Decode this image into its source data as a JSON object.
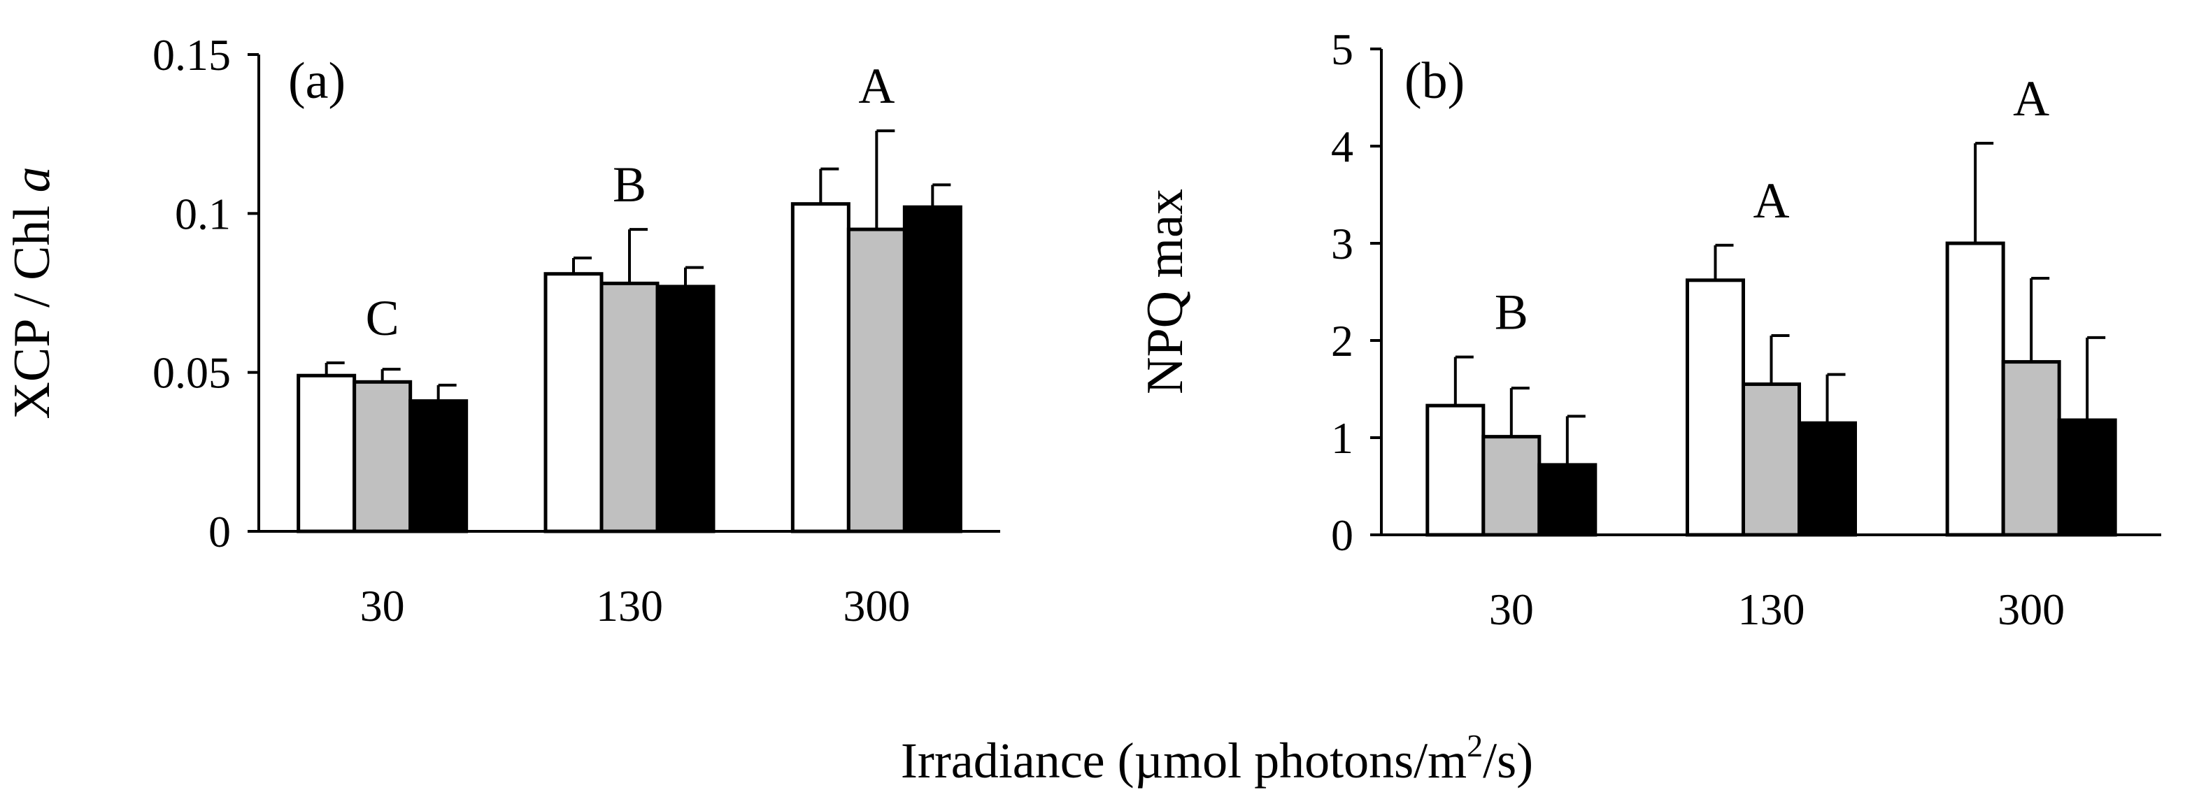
{
  "figure": {
    "shared_xlabel_main": "Irradiance (µmol photons/m",
    "shared_xlabel_sup": "2",
    "shared_xlabel_end": "/s)"
  },
  "chart_data": [
    {
      "type": "bar",
      "panel_label": "(a)",
      "ylabel_main": "XCP / Chl ",
      "ylabel_italic": "a",
      "categories": [
        "30",
        "130",
        "300"
      ],
      "yticks": [
        "0",
        "0.05",
        "0.1",
        "0.15"
      ],
      "ylim": [
        0,
        0.15
      ],
      "series": [
        {
          "name": "white",
          "color": "#ffffff",
          "values": [
            0.049,
            0.081,
            0.103
          ],
          "errors": [
            0.004,
            0.005,
            0.011
          ]
        },
        {
          "name": "gray",
          "color": "#c0c0c0",
          "values": [
            0.047,
            0.078,
            0.095
          ],
          "errors": [
            0.004,
            0.017,
            0.031
          ]
        },
        {
          "name": "black",
          "color": "#000000",
          "values": [
            0.041,
            0.077,
            0.102
          ],
          "errors": [
            0.005,
            0.006,
            0.007
          ]
        }
      ],
      "significance": [
        "C",
        "B",
        "A"
      ]
    },
    {
      "type": "bar",
      "panel_label": "(b)",
      "ylabel_main": "NPQ max",
      "ylabel_italic": "",
      "categories": [
        "30",
        "130",
        "300"
      ],
      "yticks": [
        "0",
        "1",
        "2",
        "3",
        "4",
        "5"
      ],
      "ylim": [
        0,
        5
      ],
      "series": [
        {
          "name": "white",
          "color": "#ffffff",
          "values": [
            1.33,
            2.62,
            3.0
          ],
          "errors": [
            0.5,
            0.36,
            1.03
          ]
        },
        {
          "name": "gray",
          "color": "#c0c0c0",
          "values": [
            1.01,
            1.55,
            1.78
          ],
          "errors": [
            0.5,
            0.5,
            0.86
          ]
        },
        {
          "name": "black",
          "color": "#000000",
          "values": [
            0.72,
            1.15,
            1.18
          ],
          "errors": [
            0.5,
            0.5,
            0.85
          ]
        }
      ],
      "significance": [
        "B",
        "A",
        "A"
      ]
    }
  ]
}
